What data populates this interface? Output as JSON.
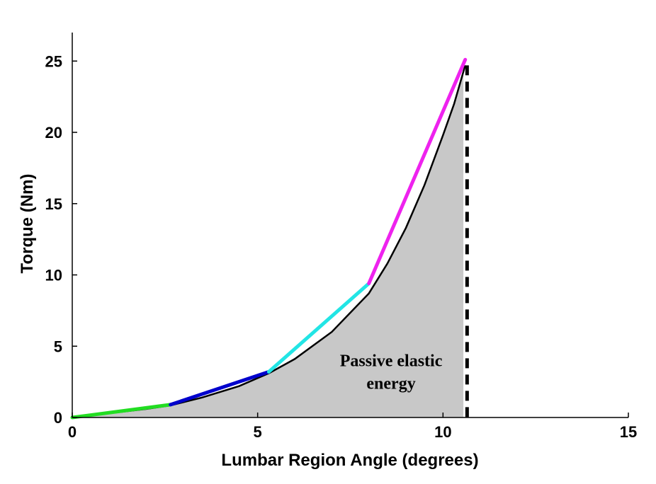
{
  "chart_data": {
    "type": "line",
    "title": "",
    "xlabel": "Lumbar Region Angle (degrees)",
    "ylabel": "Torque (Nm)",
    "xlim": [
      0,
      15
    ],
    "ylim": [
      0,
      27
    ],
    "xticks": [
      "0",
      "5",
      "10",
      "15"
    ],
    "yticks": [
      "0",
      "5",
      "10",
      "15",
      "20",
      "25"
    ],
    "grid": false,
    "legend": "none",
    "torque_curve": {
      "color": "#000000",
      "x": [
        0,
        1,
        2,
        2.65,
        3.5,
        4.5,
        5.3,
        6,
        7,
        8,
        8.5,
        9,
        9.5,
        10,
        10.3,
        10.6
      ],
      "y": [
        0,
        0.3,
        0.6,
        0.85,
        1.4,
        2.2,
        3.1,
        4.1,
        6.0,
        8.7,
        10.8,
        13.3,
        16.3,
        19.8,
        22.0,
        24.7
      ]
    },
    "linear_segments": [
      {
        "color": "#22dd22",
        "x": [
          0,
          2.65
        ],
        "y": [
          0,
          0.9
        ]
      },
      {
        "color": "#0000cc",
        "x": [
          2.65,
          5.3
        ],
        "y": [
          0.9,
          3.2
        ]
      },
      {
        "color": "#22e5e5",
        "x": [
          5.3,
          8.0
        ],
        "y": [
          3.2,
          9.4
        ]
      },
      {
        "color": "#ee22ee",
        "x": [
          8.0,
          10.6
        ],
        "y": [
          9.4,
          25.1
        ]
      }
    ],
    "limit_line": {
      "x": 10.65,
      "style": "dashed",
      "color": "#000000"
    },
    "shaded_area": {
      "color": "#c8c8c8",
      "x_end": 10.55
    },
    "annotation": {
      "lines": [
        "Passive elastic",
        "energy"
      ],
      "x": 8.6,
      "y": 3.2
    }
  }
}
